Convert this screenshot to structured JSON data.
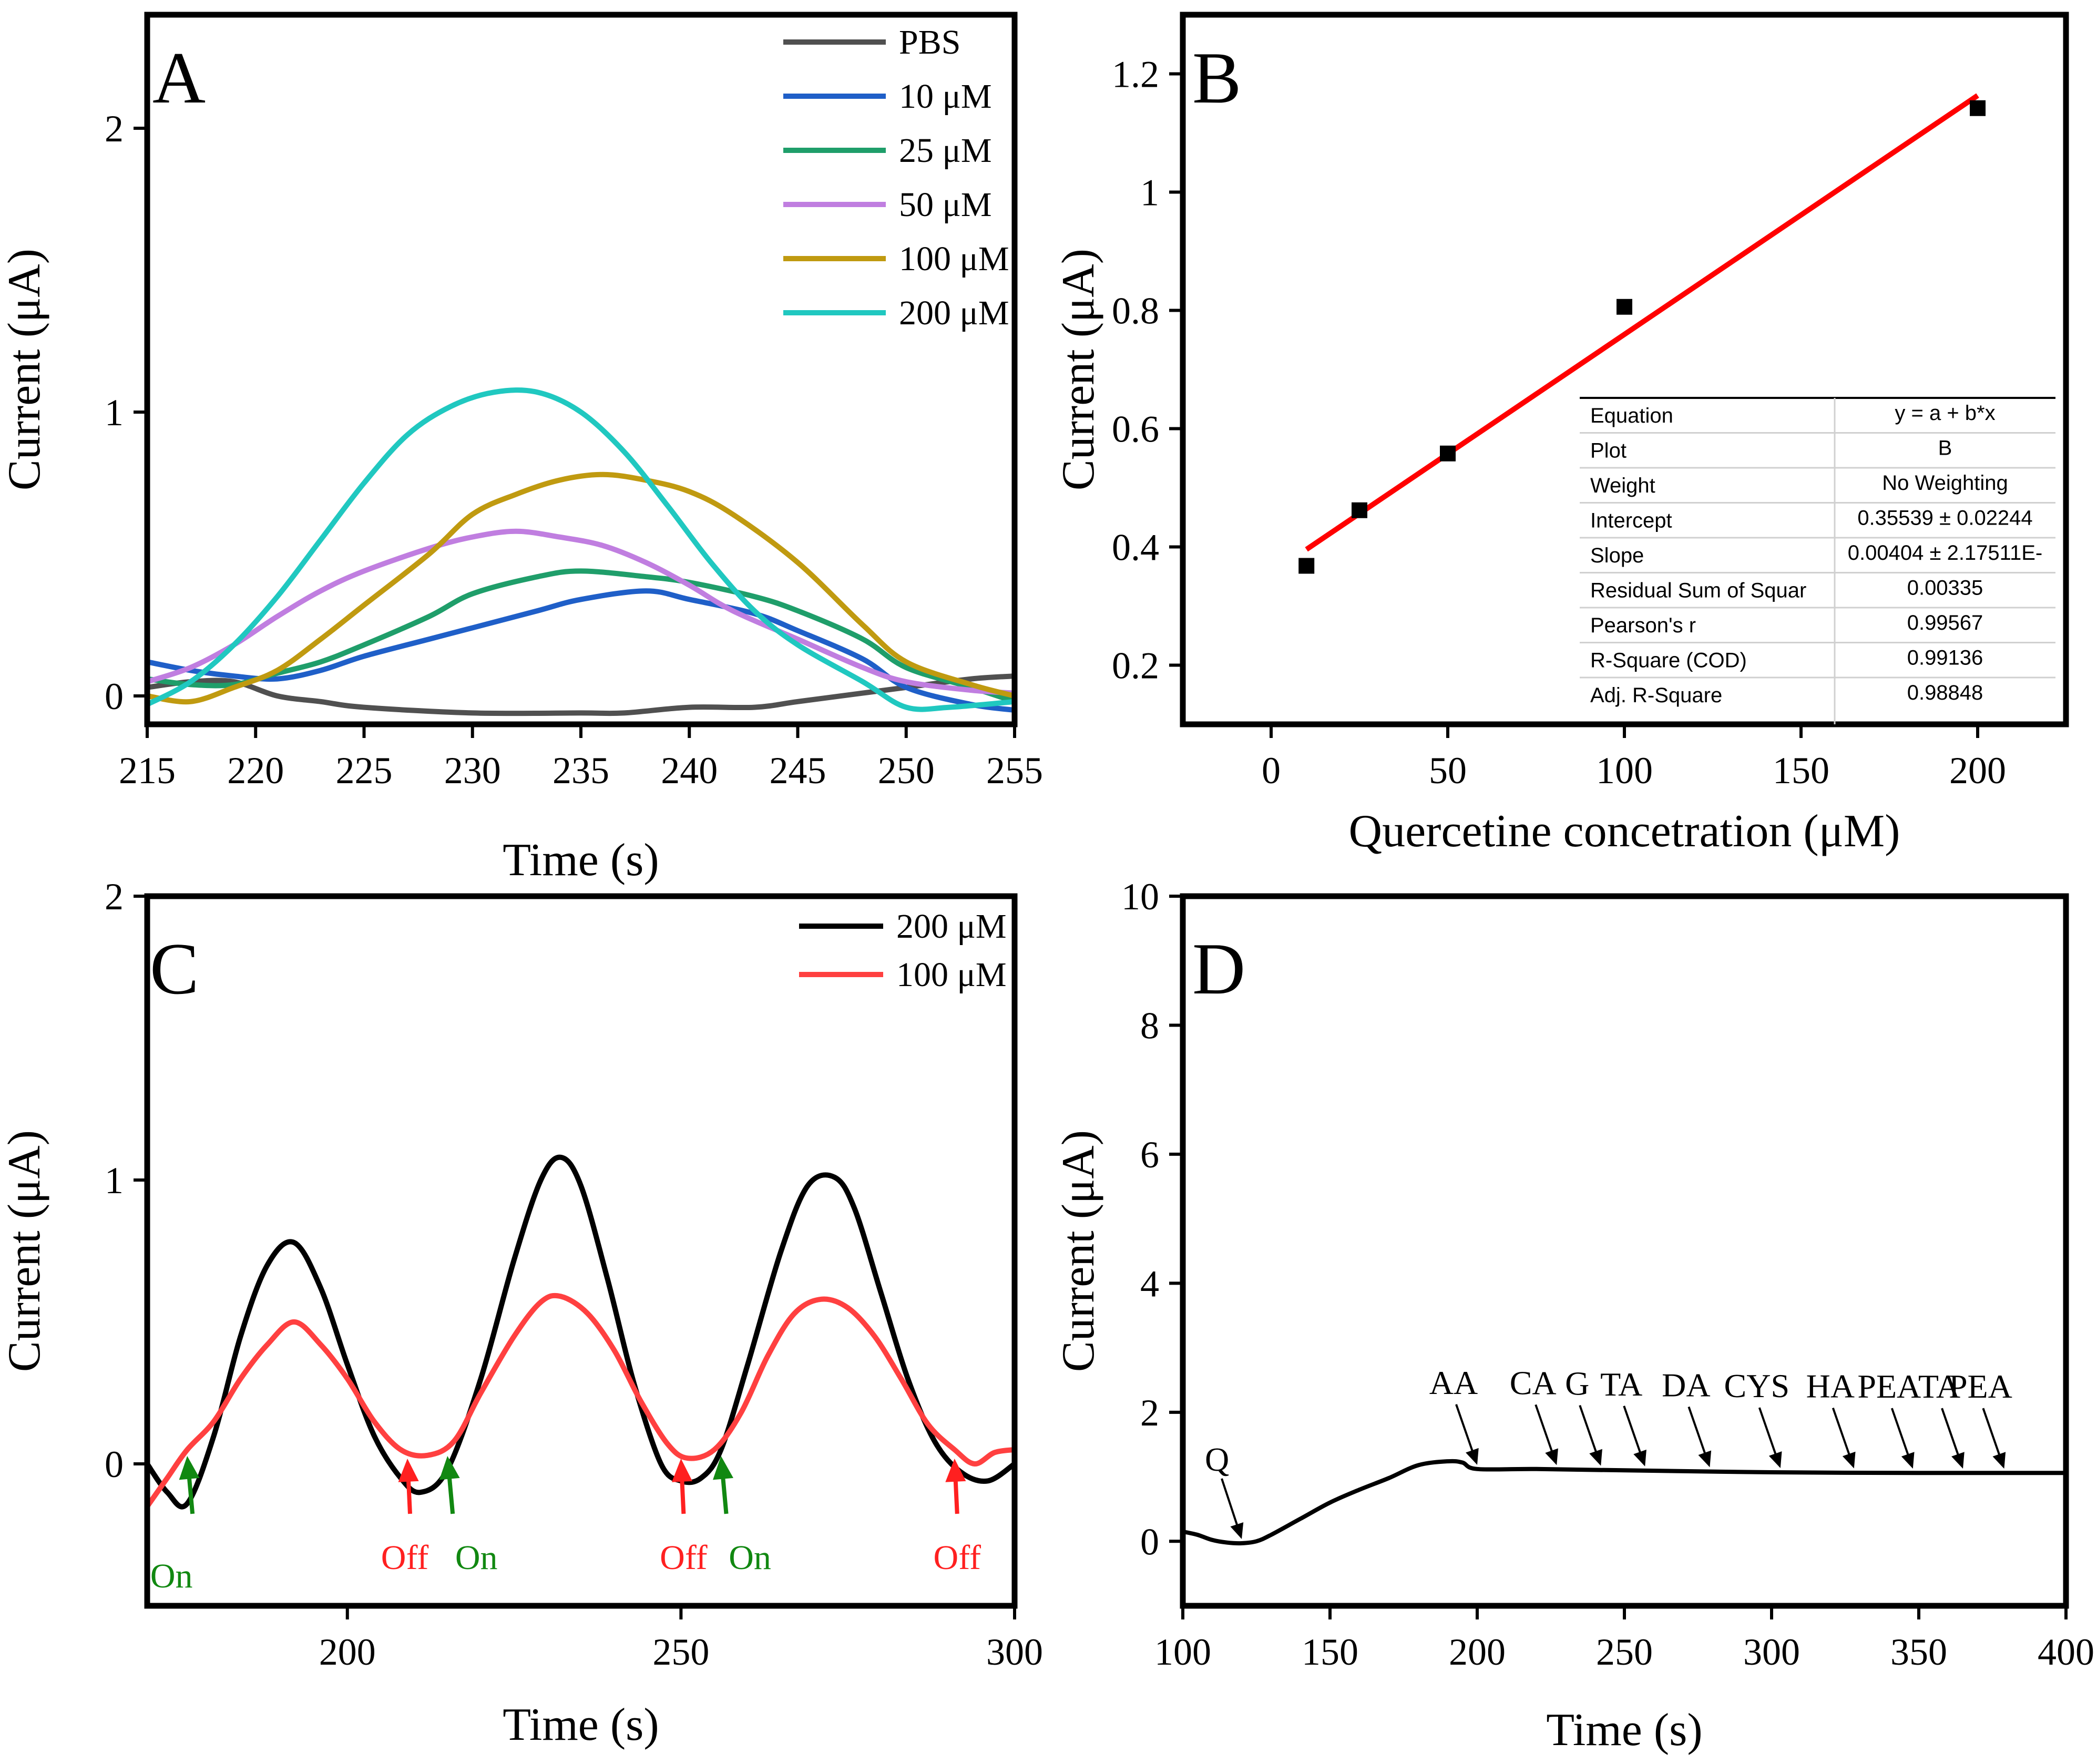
{
  "chart_data": [
    {
      "panel_label": "A",
      "type": "line",
      "xlabel": "Time (s)",
      "ylabel": "Current (μA)",
      "xlim": [
        215,
        255
      ],
      "ylim": [
        -0.1,
        2.4
      ],
      "xticks": [
        215,
        220,
        225,
        230,
        235,
        240,
        245,
        250,
        255
      ],
      "yticks": [
        0,
        1,
        2
      ],
      "legend_position": "top-right",
      "series": [
        {
          "name": "PBS",
          "color": "#505050",
          "x": [
            215,
            217,
            219,
            221,
            223,
            225,
            230,
            235,
            237,
            240,
            243,
            245,
            248,
            250,
            253,
            255
          ],
          "y": [
            0.03,
            0.05,
            0.05,
            0.0,
            -0.02,
            -0.04,
            -0.06,
            -0.06,
            -0.06,
            -0.04,
            -0.04,
            -0.02,
            0.01,
            0.03,
            0.06,
            0.07
          ]
        },
        {
          "name": "10 μM",
          "color": "#1f5fc8",
          "x": [
            215,
            217,
            219,
            221,
            223,
            225,
            228,
            230,
            233,
            235,
            238,
            240,
            243,
            245,
            248,
            250,
            253,
            255
          ],
          "y": [
            0.12,
            0.09,
            0.07,
            0.06,
            0.09,
            0.14,
            0.2,
            0.24,
            0.3,
            0.34,
            0.37,
            0.34,
            0.29,
            0.23,
            0.13,
            0.03,
            -0.03,
            -0.05
          ]
        },
        {
          "name": "25 μM",
          "color": "#1f9e6a",
          "x": [
            215,
            217,
            219,
            221,
            223,
            225,
            228,
            230,
            233,
            235,
            238,
            240,
            243,
            245,
            248,
            250,
            253,
            255
          ],
          "y": [
            0.06,
            0.04,
            0.04,
            0.08,
            0.12,
            0.18,
            0.28,
            0.36,
            0.42,
            0.44,
            0.42,
            0.4,
            0.35,
            0.3,
            0.2,
            0.1,
            0.03,
            -0.02
          ]
        },
        {
          "name": "50 μM",
          "color": "#c07ee0",
          "x": [
            215,
            217,
            219,
            221,
            223,
            225,
            228,
            230,
            232,
            234,
            236,
            238,
            240,
            242,
            245,
            248,
            250,
            253,
            255
          ],
          "y": [
            0.05,
            0.1,
            0.18,
            0.28,
            0.37,
            0.44,
            0.52,
            0.56,
            0.58,
            0.56,
            0.53,
            0.47,
            0.39,
            0.3,
            0.2,
            0.1,
            0.05,
            0.02,
            0.01
          ]
        },
        {
          "name": "100 μM",
          "color": "#c09a10",
          "x": [
            215,
            217,
            219,
            221,
            223,
            225,
            228,
            230,
            232,
            234,
            236,
            238,
            240,
            242,
            245,
            248,
            250,
            253,
            255
          ],
          "y": [
            0.0,
            -0.02,
            0.03,
            0.09,
            0.2,
            0.32,
            0.5,
            0.64,
            0.71,
            0.76,
            0.78,
            0.76,
            0.72,
            0.64,
            0.47,
            0.25,
            0.12,
            0.04,
            0.0
          ]
        },
        {
          "name": "200 μM",
          "color": "#20c8c0",
          "x": [
            215,
            217,
            219,
            221,
            223,
            225,
            227,
            229,
            231,
            233,
            235,
            237,
            239,
            241,
            243,
            245,
            248,
            250,
            252,
            255
          ],
          "y": [
            -0.03,
            0.05,
            0.18,
            0.35,
            0.55,
            0.75,
            0.92,
            1.02,
            1.07,
            1.07,
            1.0,
            0.86,
            0.67,
            0.47,
            0.3,
            0.18,
            0.05,
            -0.04,
            -0.04,
            -0.02
          ]
        }
      ]
    },
    {
      "panel_label": "B",
      "type": "scatter",
      "xlabel": "Quercetine concetration (μM)",
      "ylabel": "Current (μA)",
      "xlim": [
        -25,
        225
      ],
      "ylim": [
        0.1,
        1.3
      ],
      "xticks": [
        0,
        50,
        100,
        150,
        200
      ],
      "yticks": [
        0.2,
        0.4,
        0.6,
        0.8,
        1.0,
        1.2
      ],
      "points": {
        "x": [
          10,
          25,
          50,
          100,
          200
        ],
        "y": [
          0.368,
          0.462,
          0.558,
          0.806,
          1.142
        ]
      },
      "fit": {
        "intercept": 0.35539,
        "slope": 0.00404,
        "x_range": [
          10,
          200
        ],
        "color": "#ff0000"
      },
      "fit_table": [
        [
          "Equation",
          "y = a + b*x"
        ],
        [
          "Plot",
          "B"
        ],
        [
          "Weight",
          "No Weighting"
        ],
        [
          "Intercept",
          "0.35539 ± 0.02244"
        ],
        [
          "Slope",
          "0.00404 ± 2.17511E-"
        ],
        [
          "Residual Sum of Squar",
          "0.00335"
        ],
        [
          "Pearson's r",
          "0.99567"
        ],
        [
          "R-Square (COD)",
          "0.99136"
        ],
        [
          "Adj. R-Square",
          "0.98848"
        ]
      ]
    },
    {
      "panel_label": "C",
      "type": "line",
      "xlabel": "Time (s)",
      "ylabel": "Current (μA)",
      "xlim": [
        170,
        300
      ],
      "ylim": [
        -0.5,
        2.0
      ],
      "xticks": [
        200,
        250,
        300
      ],
      "yticks": [
        0,
        1,
        2
      ],
      "legend_position": "top-right",
      "series": [
        {
          "name": "200 μM",
          "color": "#000000",
          "x": [
            170,
            173,
            176,
            180,
            184,
            188,
            192,
            196,
            200,
            204,
            208,
            211,
            215,
            220,
            225,
            229,
            232,
            235,
            239,
            243,
            247,
            250,
            253,
            256,
            260,
            265,
            269,
            273,
            276,
            280,
            284,
            288,
            292,
            296,
            300
          ],
          "y": [
            0.0,
            -0.1,
            -0.14,
            0.1,
            0.45,
            0.7,
            0.78,
            0.62,
            0.35,
            0.1,
            -0.05,
            -0.1,
            -0.02,
            0.3,
            0.72,
            1.0,
            1.08,
            0.98,
            0.65,
            0.28,
            0.0,
            -0.06,
            -0.05,
            0.05,
            0.35,
            0.75,
            0.98,
            1.01,
            0.9,
            0.6,
            0.3,
            0.08,
            -0.03,
            -0.06,
            0.0
          ]
        },
        {
          "name": "100 μM",
          "color": "#ff4040",
          "x": [
            170,
            173,
            176,
            180,
            184,
            188,
            192,
            196,
            200,
            204,
            208,
            212,
            216,
            220,
            225,
            229,
            232,
            236,
            240,
            244,
            248,
            251,
            255,
            259,
            263,
            267,
            271,
            275,
            279,
            283,
            287,
            291,
            294,
            297,
            300
          ],
          "y": [
            -0.15,
            -0.05,
            0.05,
            0.15,
            0.3,
            0.42,
            0.5,
            0.42,
            0.3,
            0.15,
            0.05,
            0.03,
            0.08,
            0.25,
            0.45,
            0.57,
            0.59,
            0.53,
            0.4,
            0.22,
            0.07,
            0.02,
            0.05,
            0.18,
            0.38,
            0.53,
            0.58,
            0.55,
            0.45,
            0.3,
            0.14,
            0.05,
            0.0,
            0.04,
            0.05
          ]
        }
      ],
      "annotations": [
        {
          "text": "On",
          "color": "#118811",
          "x": 176
        },
        {
          "text": "Off",
          "color": "#ff2020",
          "x": 209
        },
        {
          "text": "On",
          "color": "#118811",
          "x": 215
        },
        {
          "text": "Off",
          "color": "#ff2020",
          "x": 250
        },
        {
          "text": "On",
          "color": "#118811",
          "x": 256
        },
        {
          "text": "Off",
          "color": "#ff2020",
          "x": 291
        }
      ]
    },
    {
      "panel_label": "D",
      "type": "line",
      "xlabel": "Time (s)",
      "ylabel": "Current (μA)",
      "xlim": [
        100,
        400
      ],
      "ylim": [
        -1,
        10
      ],
      "xticks": [
        100,
        150,
        200,
        250,
        300,
        350,
        400
      ],
      "yticks": [
        0,
        2,
        4,
        6,
        8,
        10
      ],
      "series": [
        {
          "name": "trace",
          "color": "#000000",
          "x": [
            100,
            105,
            110,
            115,
            120,
            125,
            130,
            140,
            150,
            160,
            170,
            180,
            190,
            195,
            200,
            220,
            250,
            300,
            350,
            400
          ],
          "y": [
            0.15,
            0.1,
            0.02,
            -0.02,
            -0.03,
            0.0,
            0.1,
            0.35,
            0.6,
            0.8,
            0.98,
            1.18,
            1.24,
            1.22,
            1.12,
            1.12,
            1.1,
            1.07,
            1.06,
            1.06
          ]
        }
      ],
      "annotations": [
        {
          "text": "Q",
          "x": 120
        },
        {
          "text": "AA",
          "x": 200
        },
        {
          "text": "CA",
          "x": 227
        },
        {
          "text": "G",
          "x": 242
        },
        {
          "text": "TA",
          "x": 257
        },
        {
          "text": "DA",
          "x": 279
        },
        {
          "text": "CYS",
          "x": 303
        },
        {
          "text": "HA",
          "x": 328
        },
        {
          "text": "PEA",
          "x": 348
        },
        {
          "text": "TA",
          "x": 365
        },
        {
          "text": "PEA",
          "x": 379
        }
      ]
    }
  ]
}
